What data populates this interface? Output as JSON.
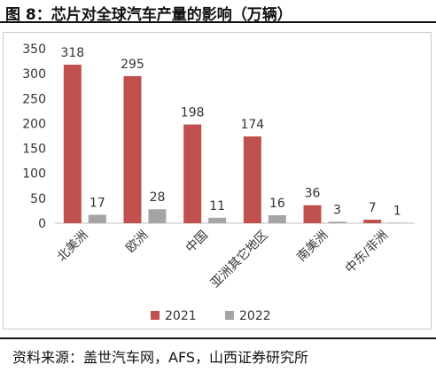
{
  "header": {
    "title": "图 8：芯片对全球汽车产量的影响（万辆）"
  },
  "footer": {
    "source": "资料来源：盖世汽车网，AFS，山西证券研究所"
  },
  "colors": {
    "series_2021": "#c0504d",
    "series_2022": "#a5a5a5",
    "axis": "#bfbfbf",
    "text": "#333333"
  },
  "chart_data": {
    "type": "bar",
    "categories": [
      "北美洲",
      "欧洲",
      "中国",
      "亚洲其它地区",
      "南美洲",
      "中东/非洲"
    ],
    "series": [
      {
        "name": "2021",
        "values": [
          318,
          295,
          198,
          174,
          36,
          7
        ]
      },
      {
        "name": "2022",
        "values": [
          17,
          28,
          11,
          16,
          3,
          1
        ]
      }
    ],
    "yticks": [
      0,
      50,
      100,
      150,
      200,
      250,
      300,
      350
    ],
    "ylim": [
      0,
      350
    ],
    "grid": false,
    "legend": "bottom",
    "data_labels": true
  }
}
